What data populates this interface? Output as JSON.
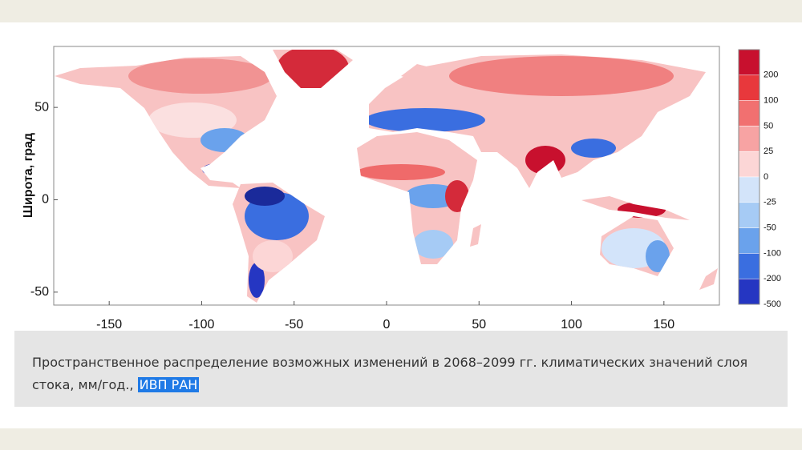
{
  "map": {
    "y_axis_label": "Широта, град",
    "xlim": [
      -180,
      180
    ],
    "ylim": [
      -57,
      83
    ],
    "xticks": [
      -150,
      -100,
      -50,
      0,
      50,
      100,
      150
    ],
    "yticks": [
      -50,
      0,
      50
    ]
  },
  "colorbar": {
    "labels": [
      200,
      100,
      50,
      25,
      0,
      -25,
      -50,
      -100,
      -200,
      -500
    ],
    "colors": [
      "#c8102e",
      "#e8383c",
      "#f17070",
      "#f7a3a3",
      "#fcd6d6",
      "#d3e4fa",
      "#a6cbf5",
      "#6aa2ec",
      "#3a6ee0",
      "#2536c2"
    ]
  },
  "caption": {
    "text": "Пространственное распределение возможных изменений в 2068–2099 гг. климатических значений слоя стока, мм/год.,",
    "link": "ИВП РАН"
  }
}
